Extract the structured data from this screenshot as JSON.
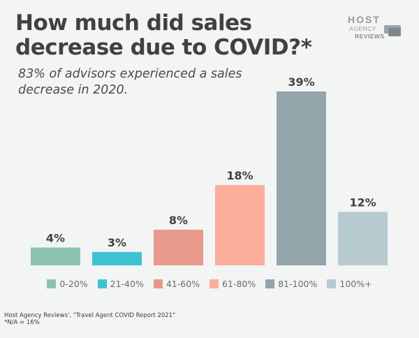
{
  "chart_data": {
    "type": "bar",
    "title": "How much did sales decrease due to COVID?*",
    "subtitle": "83% of advisors experienced a sales decrease in 2020.",
    "categories": [
      "0-20%",
      "21-40%",
      "41-60%",
      "61-80%",
      "81-100%",
      "100%+"
    ],
    "values": [
      4,
      3,
      8,
      18,
      39,
      12
    ],
    "value_labels": [
      "4%",
      "3%",
      "8%",
      "18%",
      "39%",
      "12%"
    ],
    "colors": [
      "#8cc3b0",
      "#3ec3d0",
      "#e9998a",
      "#fbae9a",
      "#93a4aa",
      "#b7cacf"
    ],
    "xlabel": "",
    "ylabel": "",
    "ylim": [
      0,
      39
    ],
    "legend_position": "bottom"
  },
  "logo": {
    "line1": "HOST",
    "line2": "AGENCY",
    "line3": "REVIEWS"
  },
  "source": {
    "line1": "Host Agency Reviews', \"Travel Agent COVID Report 2021\"",
    "line2": "*N/A = 16%"
  }
}
